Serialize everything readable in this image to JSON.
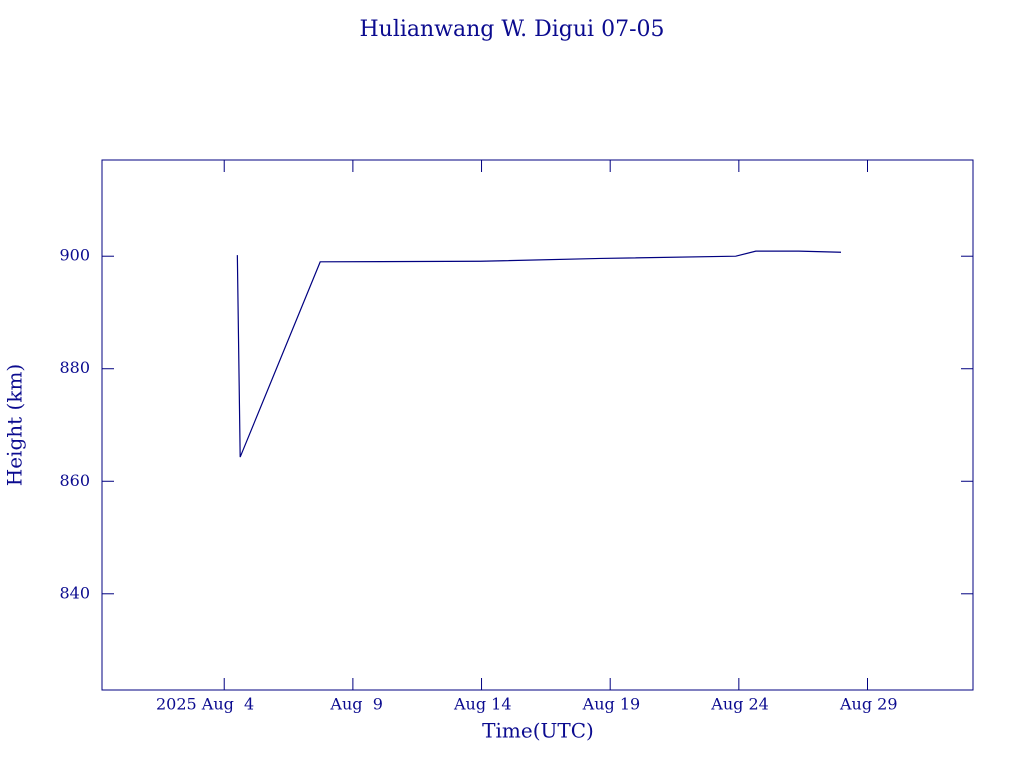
{
  "chart_data": {
    "type": "line",
    "title": "Hulianwang W. Digui 07-05",
    "xlabel": "Time(UTC)",
    "ylabel": "Height (km)",
    "x": [
      4.51,
      4.62,
      7.73,
      13.96,
      18.63,
      23.88,
      24.66,
      26.33,
      27.97
    ],
    "series": [
      {
        "name": "Height",
        "color": "#000080",
        "values": [
          900.2,
          864.3,
          899.0,
          899.1,
          899.6,
          900.0,
          900.9,
          900.9,
          900.7
        ]
      }
    ],
    "xlim": [
      -0.75,
      33.1
    ],
    "ylim": [
      822.9,
      917.1
    ],
    "xticks": [
      {
        "value": 4,
        "label": "2025 Aug  4"
      },
      {
        "value": 9,
        "label": "Aug  9"
      },
      {
        "value": 14,
        "label": "Aug 14"
      },
      {
        "value": 19,
        "label": "Aug 19"
      },
      {
        "value": 24,
        "label": "Aug 24"
      },
      {
        "value": 29,
        "label": "Aug 29"
      }
    ],
    "yticks": [
      840,
      860,
      880,
      900
    ],
    "grid": false
  }
}
